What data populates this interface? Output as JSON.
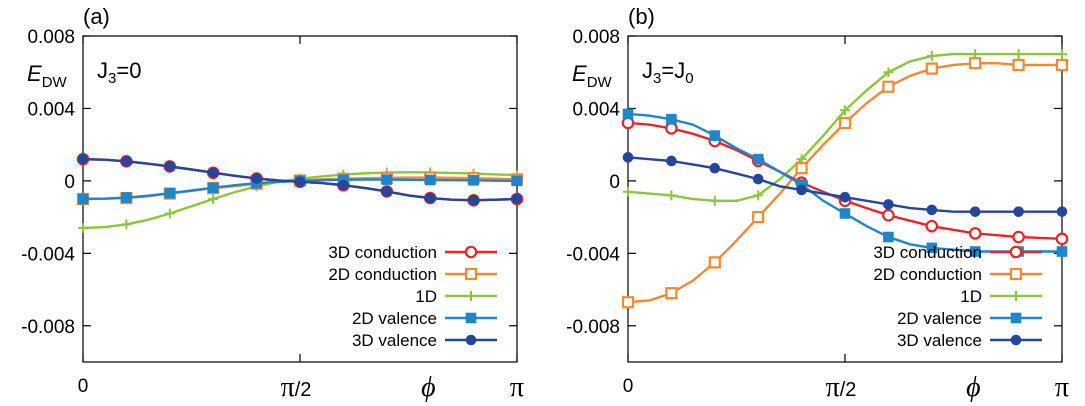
{
  "x_tick_labels": {
    "zero": "0",
    "pi_main": "π",
    "pi_half_denominator": "/2",
    "phi": "ϕ",
    "pi": "π"
  },
  "series_styles": [
    {
      "key": "c3",
      "color": "#e8262a",
      "marker": "circle-open"
    },
    {
      "key": "c2",
      "color": "#f28a34",
      "marker": "square-open"
    },
    {
      "key": "d1",
      "color": "#8cc63f",
      "marker": "plus"
    },
    {
      "key": "v2",
      "color": "#1f86c8",
      "marker": "square-filled"
    },
    {
      "key": "v3",
      "color": "#25479a",
      "marker": "circle-filled"
    }
  ],
  "chart_data": [
    {
      "type": "line",
      "panel_label": "(a)",
      "annotation": "J3=0",
      "ylabel": "E",
      "ylabel_sub": "DW",
      "xlim": [
        0,
        3.14159
      ],
      "ylim": [
        -0.01,
        0.008
      ],
      "yticks": [
        -0.008,
        -0.004,
        0,
        0.004,
        0.008
      ],
      "ytick_labels": [
        "-0.008",
        "-0.004",
        "0",
        "0.004",
        "0.008"
      ],
      "legend_position": "bottom-right",
      "x": [
        0,
        0.1571,
        0.3142,
        0.4712,
        0.6283,
        0.7854,
        0.9425,
        1.0996,
        1.2566,
        1.4137,
        1.5708,
        1.7279,
        1.885,
        2.042,
        2.1991,
        2.3562,
        2.5133,
        2.6704,
        2.8274,
        2.9845,
        3.1416
      ],
      "series": [
        {
          "key": "c3",
          "name": "3D conduction",
          "values": [
            0.0012,
            0.00117,
            0.00108,
            0.00095,
            0.0008,
            0.00063,
            0.00045,
            0.00028,
            0.00013,
            2e-05,
            -5e-05,
            -0.00012,
            -0.00024,
            -0.0004,
            -0.00058,
            -0.0008,
            -0.00095,
            -0.00104,
            -0.00107,
            -0.00104,
            -0.001
          ]
        },
        {
          "key": "c2",
          "name": "2D conduction",
          "values": [
            -0.001,
            -0.00099,
            -0.00095,
            -0.00085,
            -0.0007,
            -0.00055,
            -0.0004,
            -0.00028,
            -0.00015,
            -6e-05,
            2e-05,
            8e-05,
            0.00012,
            0.00015,
            0.00017,
            0.00018,
            0.00018,
            0.00017,
            0.00015,
            0.00012,
            8e-05
          ]
        },
        {
          "key": "d1",
          "name": "1D",
          "values": [
            -0.0026,
            -0.00255,
            -0.0024,
            -0.00215,
            -0.0018,
            -0.0014,
            -0.001,
            -0.00062,
            -0.0003,
            -5e-05,
            0.00012,
            0.00025,
            0.00035,
            0.00042,
            0.00046,
            0.00048,
            0.00047,
            0.00044,
            0.0004,
            0.00036,
            0.00032
          ]
        },
        {
          "key": "v2",
          "name": "2D valence",
          "values": [
            -0.001,
            -0.00098,
            -0.00092,
            -0.00082,
            -0.00068,
            -0.00053,
            -0.00038,
            -0.00024,
            -0.00013,
            -5e-05,
            0.0,
            4e-05,
            6e-05,
            7e-05,
            7e-05,
            6e-05,
            5e-05,
            4e-05,
            3e-05,
            1e-05,
            0.0
          ]
        },
        {
          "key": "v3",
          "name": "3D valence",
          "values": [
            0.0012,
            0.00117,
            0.00108,
            0.00095,
            0.0008,
            0.00063,
            0.00045,
            0.00028,
            0.00013,
            2e-05,
            -5e-05,
            -0.00012,
            -0.00024,
            -0.0004,
            -0.00058,
            -0.0008,
            -0.00095,
            -0.00104,
            -0.00107,
            -0.00104,
            -0.001
          ]
        }
      ]
    },
    {
      "type": "line",
      "panel_label": "(b)",
      "annotation": "J3=J0",
      "ylabel": "E",
      "ylabel_sub": "DW",
      "xlim": [
        0,
        3.14159
      ],
      "ylim": [
        -0.01,
        0.008
      ],
      "yticks": [
        -0.008,
        -0.004,
        0,
        0.004,
        0.008
      ],
      "ytick_labels": [
        "-0.008",
        "-0.004",
        "0",
        "0.004",
        "0.008"
      ],
      "legend_position": "bottom-right",
      "x": [
        0,
        0.1571,
        0.3142,
        0.4712,
        0.6283,
        0.7854,
        0.9425,
        1.0996,
        1.2566,
        1.4137,
        1.5708,
        1.7279,
        1.885,
        2.042,
        2.1991,
        2.3562,
        2.5133,
        2.6704,
        2.8274,
        2.9845,
        3.1416
      ],
      "series": [
        {
          "key": "c3",
          "name": "3D conduction",
          "values": [
            0.0032,
            0.0031,
            0.0029,
            0.0026,
            0.0022,
            0.0017,
            0.0011,
            0.0005,
            -0.0001,
            -0.0006,
            -0.0011,
            -0.0015,
            -0.0019,
            -0.0022,
            -0.0025,
            -0.0027,
            -0.0029,
            -0.003,
            -0.0031,
            -0.00315,
            -0.0032
          ]
        },
        {
          "key": "c2",
          "name": "2D conduction",
          "values": [
            -0.0067,
            -0.0066,
            -0.0062,
            -0.0055,
            -0.0045,
            -0.0033,
            -0.002,
            -0.0007,
            0.0007,
            0.002,
            0.0032,
            0.0043,
            0.0052,
            0.0058,
            0.0062,
            0.0064,
            0.0065,
            0.0065,
            0.0064,
            0.0064,
            0.0064
          ]
        },
        {
          "key": "d1",
          "name": "1D",
          "values": [
            -0.0006,
            -0.0007,
            -0.0008,
            -0.001,
            -0.0011,
            -0.0011,
            -0.0008,
            0.0001,
            0.0012,
            0.0025,
            0.0039,
            0.005,
            0.006,
            0.0066,
            0.0069,
            0.007,
            0.007,
            0.007,
            0.007,
            0.007,
            0.007
          ]
        },
        {
          "key": "v2",
          "name": "2D valence",
          "values": [
            0.0037,
            0.0036,
            0.0034,
            0.0031,
            0.0025,
            0.0018,
            0.0012,
            0.0005,
            -0.0002,
            -0.0011,
            -0.0018,
            -0.0025,
            -0.0031,
            -0.0035,
            -0.0037,
            -0.0038,
            -0.0039,
            -0.0039,
            -0.0039,
            -0.0039,
            -0.0039
          ]
        },
        {
          "key": "v3",
          "name": "3D valence",
          "values": [
            0.0013,
            0.0012,
            0.0011,
            0.0009,
            0.0007,
            0.0004,
            0.0001,
            -0.0003,
            -0.0005,
            -0.0007,
            -0.0009,
            -0.0011,
            -0.0013,
            -0.0015,
            -0.0016,
            -0.0017,
            -0.0017,
            -0.0017,
            -0.0017,
            -0.0017,
            -0.0017
          ]
        }
      ]
    }
  ]
}
